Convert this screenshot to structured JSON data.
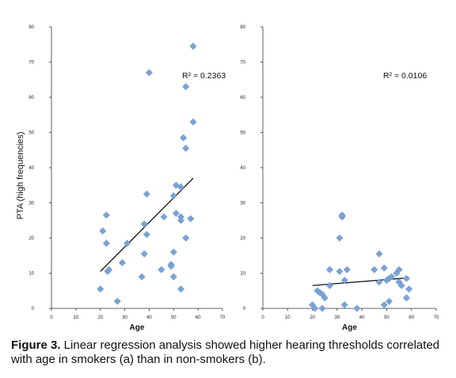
{
  "chart_data": [
    {
      "type": "scatter",
      "panel": "a",
      "xlabel": "Age",
      "ylabel": "PTA (high frequencies)",
      "xlim": [
        0,
        70
      ],
      "ylim": [
        0,
        80
      ],
      "xticks": [
        0,
        10,
        20,
        30,
        40,
        50,
        60,
        70
      ],
      "yticks": [
        0,
        10,
        20,
        30,
        40,
        50,
        60,
        70,
        80
      ],
      "annotation": "R² = 0.2363",
      "marker_color": "#7aa3d4",
      "trend_color": "#000000",
      "trendline": {
        "x": [
          20,
          58
        ],
        "y": [
          10.5,
          37
        ]
      },
      "points": [
        {
          "x": 20,
          "y": 5.5
        },
        {
          "x": 21,
          "y": 22
        },
        {
          "x": 22.5,
          "y": 26.5
        },
        {
          "x": 22.5,
          "y": 18.5
        },
        {
          "x": 23,
          "y": 10.5
        },
        {
          "x": 23.5,
          "y": 11
        },
        {
          "x": 27,
          "y": 2
        },
        {
          "x": 29,
          "y": 13
        },
        {
          "x": 31,
          "y": 18.5
        },
        {
          "x": 37,
          "y": 9
        },
        {
          "x": 38,
          "y": 24
        },
        {
          "x": 38,
          "y": 15.5
        },
        {
          "x": 39,
          "y": 32.5
        },
        {
          "x": 39,
          "y": 21
        },
        {
          "x": 40,
          "y": 67
        },
        {
          "x": 45,
          "y": 11
        },
        {
          "x": 46,
          "y": 26
        },
        {
          "x": 49,
          "y": 12.5
        },
        {
          "x": 49,
          "y": 12
        },
        {
          "x": 50,
          "y": 9
        },
        {
          "x": 50,
          "y": 16
        },
        {
          "x": 50,
          "y": 32
        },
        {
          "x": 51,
          "y": 27
        },
        {
          "x": 51,
          "y": 35
        },
        {
          "x": 53,
          "y": 5.5
        },
        {
          "x": 53,
          "y": 26
        },
        {
          "x": 53,
          "y": 34.5
        },
        {
          "x": 53,
          "y": 25
        },
        {
          "x": 54,
          "y": 48.5
        },
        {
          "x": 55,
          "y": 45.5
        },
        {
          "x": 55,
          "y": 20
        },
        {
          "x": 55,
          "y": 63
        },
        {
          "x": 57,
          "y": 25.5
        },
        {
          "x": 58,
          "y": 53
        },
        {
          "x": 58,
          "y": 74.5
        }
      ]
    },
    {
      "type": "scatter",
      "panel": "b",
      "xlabel": "Age",
      "ylabel": "",
      "xlim": [
        0,
        70
      ],
      "ylim": [
        0,
        80
      ],
      "xticks": [
        0,
        10,
        20,
        30,
        40,
        50,
        60,
        70
      ],
      "yticks": [
        0,
        10,
        20,
        30,
        40,
        50,
        60,
        70,
        80
      ],
      "annotation": "R² = 0.0106",
      "marker_color": "#7aa3d4",
      "trend_color": "#000000",
      "trendline": {
        "x": [
          20,
          59
        ],
        "y": [
          6.5,
          8.7
        ]
      },
      "points": [
        {
          "x": 20,
          "y": 1
        },
        {
          "x": 21,
          "y": 0
        },
        {
          "x": 22,
          "y": 5
        },
        {
          "x": 23,
          "y": 4.5
        },
        {
          "x": 24,
          "y": 0
        },
        {
          "x": 24,
          "y": 4
        },
        {
          "x": 25,
          "y": 3
        },
        {
          "x": 27,
          "y": 11
        },
        {
          "x": 27,
          "y": 6.5
        },
        {
          "x": 31,
          "y": 20
        },
        {
          "x": 31,
          "y": 10.5
        },
        {
          "x": 32,
          "y": 26.5
        },
        {
          "x": 32,
          "y": 26
        },
        {
          "x": 33,
          "y": 8
        },
        {
          "x": 33,
          "y": 1
        },
        {
          "x": 34,
          "y": 11
        },
        {
          "x": 38,
          "y": 0
        },
        {
          "x": 45,
          "y": 11
        },
        {
          "x": 47,
          "y": 15.5
        },
        {
          "x": 47,
          "y": 7.5
        },
        {
          "x": 49,
          "y": 11.5
        },
        {
          "x": 49,
          "y": 1
        },
        {
          "x": 50,
          "y": 8
        },
        {
          "x": 51,
          "y": 8.5
        },
        {
          "x": 51,
          "y": 2
        },
        {
          "x": 52,
          "y": 9
        },
        {
          "x": 54,
          "y": 10
        },
        {
          "x": 55,
          "y": 11
        },
        {
          "x": 55,
          "y": 7.5
        },
        {
          "x": 56,
          "y": 6.5
        },
        {
          "x": 58,
          "y": 8.5
        },
        {
          "x": 58,
          "y": 3
        },
        {
          "x": 59,
          "y": 5.5
        }
      ]
    }
  ],
  "caption": {
    "label": "Figure 3.",
    "text": " Linear regression analysis showed higher hearing thresholds correlated with age in smokers  (a) than in non-smokers (b)."
  }
}
